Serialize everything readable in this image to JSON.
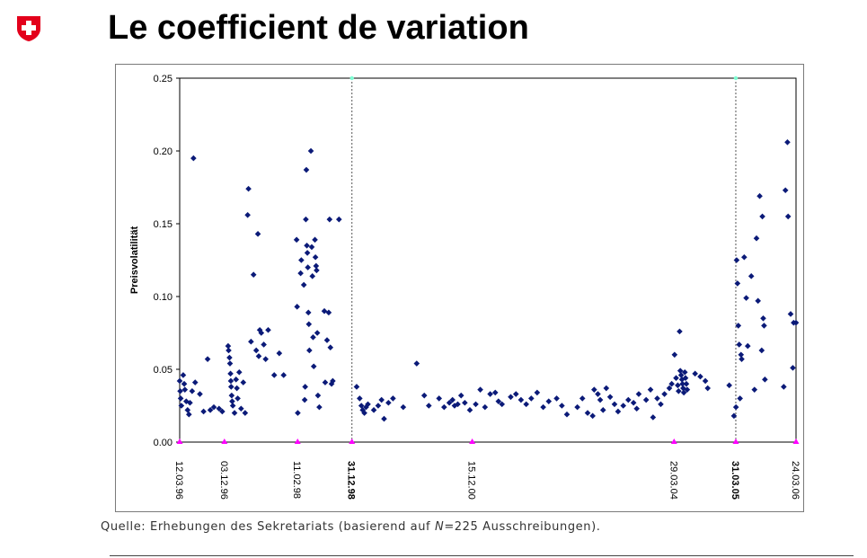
{
  "header": {
    "title": "Le coefficient de variation",
    "logo_colors": {
      "shield": "#e3001b",
      "cross": "#ffffff"
    }
  },
  "source": {
    "prefix": "Quelle: Erhebungen des Sekretariats (basierend auf ",
    "n_symbol": "N",
    "suffix": "=225 Ausschreibungen)."
  },
  "chart_data": {
    "type": "scatter",
    "ylabel": "Preisvolatilität",
    "ylim": [
      0,
      0.25
    ],
    "yticks": [
      "0.00",
      "0.05",
      "0.10",
      "0.15",
      "0.20",
      "0.25"
    ],
    "xlim": [
      "1996-03-12",
      "2006-03-24"
    ],
    "date_ticks": [
      {
        "date": "1996-03-12",
        "label": "12.03.96",
        "bold": false
      },
      {
        "date": "1996-12-03",
        "label": "03.12.96",
        "bold": false
      },
      {
        "date": "1998-02-11",
        "label": "11.02.98",
        "bold": false
      },
      {
        "date": "1998-12-31",
        "label": "31.12.98",
        "bold": true
      },
      {
        "date": "2000-12-15",
        "label": "15.12.00",
        "bold": false
      },
      {
        "date": "2004-03-29",
        "label": "29.03.04",
        "bold": false
      },
      {
        "date": "2005-03-31",
        "label": "31.03.05",
        "bold": true
      },
      {
        "date": "2006-03-24",
        "label": "24.03.06",
        "bold": false
      }
    ],
    "reference_lines": [
      "1998-12-31",
      "2005-03-31"
    ],
    "colors": {
      "points": "#0b1a78",
      "tick_marker": "#ff00ff",
      "ref_marker_top": "#7fffd4"
    },
    "grid": false,
    "points": [
      [
        "1996-03-12",
        0.042
      ],
      [
        "1996-03-15",
        0.035
      ],
      [
        "1996-03-18",
        0.03
      ],
      [
        "1996-03-22",
        0.025
      ],
      [
        "1996-04-02",
        0.046
      ],
      [
        "1996-04-08",
        0.04
      ],
      [
        "1996-04-12",
        0.036
      ],
      [
        "1996-04-20",
        0.028
      ],
      [
        "1996-04-28",
        0.022
      ],
      [
        "1996-05-06",
        0.019
      ],
      [
        "1996-05-12",
        0.027
      ],
      [
        "1996-05-25",
        0.035
      ],
      [
        "1996-06-02",
        0.195
      ],
      [
        "1996-06-12",
        0.041
      ],
      [
        "1996-07-10",
        0.033
      ],
      [
        "1996-08-01",
        0.021
      ],
      [
        "1996-08-25",
        0.057
      ],
      [
        "1996-09-10",
        0.022
      ],
      [
        "1996-10-01",
        0.024
      ],
      [
        "1996-11-01",
        0.023
      ],
      [
        "1996-11-20",
        0.021
      ],
      [
        "1996-12-25",
        0.066
      ],
      [
        "1996-12-28",
        0.063
      ],
      [
        "1997-01-02",
        0.058
      ],
      [
        "1997-01-05",
        0.054
      ],
      [
        "1997-01-08",
        0.047
      ],
      [
        "1997-01-10",
        0.042
      ],
      [
        "1997-01-12",
        0.038
      ],
      [
        "1997-01-15",
        0.032
      ],
      [
        "1997-01-18",
        0.028
      ],
      [
        "1997-01-22",
        0.025
      ],
      [
        "1997-02-01",
        0.02
      ],
      [
        "1997-02-10",
        0.043
      ],
      [
        "1997-02-15",
        0.037
      ],
      [
        "1997-02-20",
        0.03
      ],
      [
        "1997-03-01",
        0.048
      ],
      [
        "1997-03-12",
        0.023
      ],
      [
        "1997-03-25",
        0.041
      ],
      [
        "1997-04-05",
        0.02
      ],
      [
        "1997-04-20",
        0.156
      ],
      [
        "1997-04-25",
        0.174
      ],
      [
        "1997-05-10",
        0.069
      ],
      [
        "1997-05-25",
        0.115
      ],
      [
        "1997-06-10",
        0.063
      ],
      [
        "1997-06-20",
        0.143
      ],
      [
        "1997-06-25",
        0.059
      ],
      [
        "1997-07-01",
        0.077
      ],
      [
        "1997-07-10",
        0.075
      ],
      [
        "1997-07-25",
        0.067
      ],
      [
        "1997-08-05",
        0.057
      ],
      [
        "1997-08-20",
        0.077
      ],
      [
        "1997-09-25",
        0.046
      ],
      [
        "1997-10-25",
        0.061
      ],
      [
        "1997-11-20",
        0.046
      ],
      [
        "1998-02-05",
        0.139
      ],
      [
        "1998-02-08",
        0.093
      ],
      [
        "1998-02-12",
        0.02
      ],
      [
        "1998-03-01",
        0.116
      ],
      [
        "1998-03-05",
        0.125
      ],
      [
        "1998-03-20",
        0.108
      ],
      [
        "1998-03-25",
        0.029
      ],
      [
        "1998-03-28",
        0.038
      ],
      [
        "1998-04-01",
        0.153
      ],
      [
        "1998-04-04",
        0.187
      ],
      [
        "1998-04-07",
        0.135
      ],
      [
        "1998-04-10",
        0.13
      ],
      [
        "1998-04-13",
        0.12
      ],
      [
        "1998-04-16",
        0.089
      ],
      [
        "1998-04-19",
        0.081
      ],
      [
        "1998-04-22",
        0.063
      ],
      [
        "1998-05-01",
        0.2
      ],
      [
        "1998-05-06",
        0.134
      ],
      [
        "1998-05-10",
        0.114
      ],
      [
        "1998-05-14",
        0.072
      ],
      [
        "1998-05-18",
        0.052
      ],
      [
        "1998-05-25",
        0.139
      ],
      [
        "1998-05-28",
        0.127
      ],
      [
        "1998-06-01",
        0.121
      ],
      [
        "1998-06-04",
        0.118
      ],
      [
        "1998-06-08",
        0.075
      ],
      [
        "1998-06-12",
        0.032
      ],
      [
        "1998-06-20",
        0.024
      ],
      [
        "1998-07-20",
        0.09
      ],
      [
        "1998-07-25",
        0.041
      ],
      [
        "1998-08-05",
        0.07
      ],
      [
        "1998-08-15",
        0.089
      ],
      [
        "1998-08-20",
        0.153
      ],
      [
        "1998-08-25",
        0.065
      ],
      [
        "1998-09-01",
        0.04
      ],
      [
        "1998-09-08",
        0.042
      ],
      [
        "1998-10-15",
        0.153
      ],
      [
        "1999-01-28",
        0.038
      ],
      [
        "1999-02-15",
        0.03
      ],
      [
        "1999-02-25",
        0.025
      ],
      [
        "1999-03-05",
        0.022
      ],
      [
        "1999-03-15",
        0.02
      ],
      [
        "1999-03-25",
        0.024
      ],
      [
        "1999-04-05",
        0.026
      ],
      [
        "1999-05-10",
        0.022
      ],
      [
        "1999-06-05",
        0.025
      ],
      [
        "1999-06-25",
        0.029
      ],
      [
        "1999-07-10",
        0.016
      ],
      [
        "1999-08-05",
        0.027
      ],
      [
        "1999-09-01",
        0.03
      ],
      [
        "1999-11-01",
        0.024
      ],
      [
        "2000-01-20",
        0.054
      ],
      [
        "2000-03-05",
        0.032
      ],
      [
        "2000-04-01",
        0.025
      ],
      [
        "2000-06-01",
        0.03
      ],
      [
        "2000-07-01",
        0.024
      ],
      [
        "2000-08-01",
        0.027
      ],
      [
        "2000-08-20",
        0.029
      ],
      [
        "2000-09-01",
        0.025
      ],
      [
        "2000-09-20",
        0.026
      ],
      [
        "2000-10-10",
        0.032
      ],
      [
        "2000-11-01",
        0.027
      ],
      [
        "2000-12-01",
        0.022
      ],
      [
        "2001-01-05",
        0.026
      ],
      [
        "2001-02-01",
        0.036
      ],
      [
        "2001-03-01",
        0.024
      ],
      [
        "2001-04-01",
        0.033
      ],
      [
        "2001-05-01",
        0.034
      ],
      [
        "2001-05-20",
        0.028
      ],
      [
        "2001-06-10",
        0.026
      ],
      [
        "2001-08-01",
        0.031
      ],
      [
        "2001-09-01",
        0.033
      ],
      [
        "2001-10-01",
        0.029
      ],
      [
        "2001-11-01",
        0.026
      ],
      [
        "2001-12-01",
        0.03
      ],
      [
        "2002-01-05",
        0.034
      ],
      [
        "2002-02-10",
        0.024
      ],
      [
        "2002-03-15",
        0.028
      ],
      [
        "2002-05-01",
        0.03
      ],
      [
        "2002-06-01",
        0.025
      ],
      [
        "2002-07-01",
        0.019
      ],
      [
        "2002-09-01",
        0.024
      ],
      [
        "2002-10-01",
        0.03
      ],
      [
        "2002-11-01",
        0.02
      ],
      [
        "2002-12-01",
        0.018
      ],
      [
        "2002-12-10",
        0.036
      ],
      [
        "2003-01-01",
        0.033
      ],
      [
        "2003-01-15",
        0.029
      ],
      [
        "2003-02-01",
        0.022
      ],
      [
        "2003-02-20",
        0.037
      ],
      [
        "2003-03-15",
        0.031
      ],
      [
        "2003-04-10",
        0.026
      ],
      [
        "2003-05-01",
        0.021
      ],
      [
        "2003-06-01",
        0.025
      ],
      [
        "2003-07-01",
        0.029
      ],
      [
        "2003-08-01",
        0.027
      ],
      [
        "2003-08-20",
        0.023
      ],
      [
        "2003-09-01",
        0.033
      ],
      [
        "2003-10-15",
        0.029
      ],
      [
        "2003-11-10",
        0.036
      ],
      [
        "2003-11-25",
        0.017
      ],
      [
        "2003-12-20",
        0.03
      ],
      [
        "2004-01-10",
        0.026
      ],
      [
        "2004-02-01",
        0.033
      ],
      [
        "2004-03-01",
        0.037
      ],
      [
        "2004-03-15",
        0.04
      ],
      [
        "2004-04-01",
        0.06
      ],
      [
        "2004-04-10",
        0.044
      ],
      [
        "2004-04-20",
        0.039
      ],
      [
        "2004-04-25",
        0.035
      ],
      [
        "2004-05-01",
        0.076
      ],
      [
        "2004-05-05",
        0.049
      ],
      [
        "2004-05-10",
        0.046
      ],
      [
        "2004-05-15",
        0.043
      ],
      [
        "2004-05-18",
        0.04
      ],
      [
        "2004-05-22",
        0.037
      ],
      [
        "2004-05-26",
        0.034
      ],
      [
        "2004-06-01",
        0.048
      ],
      [
        "2004-06-05",
        0.044
      ],
      [
        "2004-06-10",
        0.04
      ],
      [
        "2004-06-15",
        0.036
      ],
      [
        "2004-08-01",
        0.047
      ],
      [
        "2004-09-01",
        0.045
      ],
      [
        "2004-10-01",
        0.042
      ],
      [
        "2004-10-15",
        0.037
      ],
      [
        "2005-02-20",
        0.039
      ],
      [
        "2005-03-20",
        0.018
      ],
      [
        "2005-04-01",
        0.024
      ],
      [
        "2005-04-05",
        0.125
      ],
      [
        "2005-04-10",
        0.109
      ],
      [
        "2005-04-15",
        0.08
      ],
      [
        "2005-04-20",
        0.067
      ],
      [
        "2005-04-25",
        0.03
      ],
      [
        "2005-05-01",
        0.06
      ],
      [
        "2005-05-05",
        0.057
      ],
      [
        "2005-05-20",
        0.127
      ],
      [
        "2005-06-01",
        0.099
      ],
      [
        "2005-06-10",
        0.066
      ],
      [
        "2005-07-01",
        0.114
      ],
      [
        "2005-07-20",
        0.036
      ],
      [
        "2005-08-01",
        0.14
      ],
      [
        "2005-08-10",
        0.097
      ],
      [
        "2005-08-20",
        0.169
      ],
      [
        "2005-09-01",
        0.063
      ],
      [
        "2005-09-05",
        0.155
      ],
      [
        "2005-09-10",
        0.085
      ],
      [
        "2005-09-15",
        0.08
      ],
      [
        "2005-09-20",
        0.043
      ],
      [
        "2006-01-10",
        0.038
      ],
      [
        "2006-01-20",
        0.173
      ],
      [
        "2006-02-01",
        0.206
      ],
      [
        "2006-02-05",
        0.155
      ],
      [
        "2006-02-20",
        0.088
      ],
      [
        "2006-03-05",
        0.051
      ],
      [
        "2006-03-10",
        0.082
      ],
      [
        "2006-03-24",
        0.082
      ]
    ]
  }
}
